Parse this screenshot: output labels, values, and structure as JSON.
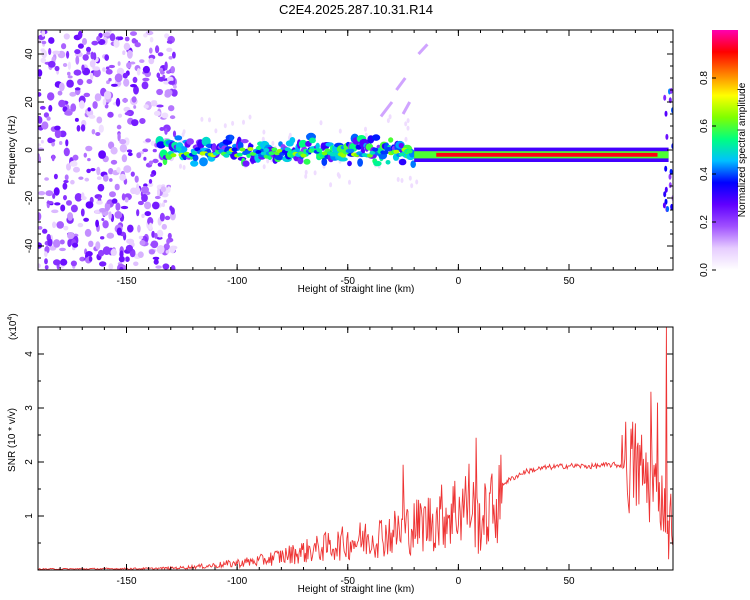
{
  "title": "C2E4.2025.287.10.31.R14",
  "chart_data": [
    {
      "type": "heatmap",
      "title": "C2E4.2025.287.10.31.R14",
      "xlabel": "Height of straight line (km)",
      "ylabel": "Frequency (Hz)",
      "xlim": [
        -190,
        97
      ],
      "ylim": [
        -50,
        50
      ],
      "x_ticks": [
        -150,
        -100,
        -50,
        0,
        50
      ],
      "y_ticks": [
        -40,
        -20,
        0,
        20,
        40
      ],
      "colorbar": {
        "label": "Normalized spectral amplitude",
        "range": [
          0,
          1
        ],
        "ticks": [
          0.0,
          0.2,
          0.4,
          0.6,
          0.8
        ],
        "tick_labels": [
          "0.0",
          "0.2",
          "0.4",
          "0.6",
          "0.8"
        ],
        "colors": [
          "#ffffff",
          "#e6ccff",
          "#a050ff",
          "#6000ff",
          "#0000ff",
          "#00c0ff",
          "#00ff80",
          "#80ff00",
          "#ffff00",
          "#ff8000",
          "#ff0000",
          "#ff00b0"
        ]
      },
      "segments": [
        {
          "x": [
            -190,
            -128
          ],
          "freq": 0,
          "freq_spread": 50,
          "amplitude": 0.2,
          "description_note": "noise"
        },
        {
          "x": [
            -135,
            -20
          ],
          "freq": 0,
          "freq_spread": 5,
          "amplitude": 0.45
        },
        {
          "x": [
            -20,
            95
          ],
          "freq": -2,
          "freq_spread": 1.5,
          "amplitude": 0.9
        }
      ]
    },
    {
      "type": "line",
      "xlabel": "Height of straight line (km)",
      "ylabel": "SNR (10 * v/v)",
      "ylabel_scale": "(x10",
      "ylabel_scale_exp": "4",
      "ylabel_scale_close": ")",
      "xlim": [
        -190,
        97
      ],
      "ylim": [
        0,
        4.5
      ],
      "x_ticks": [
        -150,
        -100,
        -50,
        0,
        50
      ],
      "y_ticks": [
        1,
        2,
        3,
        4
      ],
      "color": "#ee3333",
      "envelope": {
        "x": [
          -190,
          -140,
          -125,
          -110,
          -100,
          -90,
          -80,
          -70,
          -60,
          -50,
          -40,
          -30,
          -20,
          -10,
          0,
          5,
          10,
          20,
          30,
          40,
          50,
          60,
          70,
          80,
          85,
          90,
          95,
          97
        ],
        "y": [
          0.02,
          0.03,
          0.05,
          0.1,
          0.15,
          0.2,
          0.3,
          0.4,
          0.5,
          0.6,
          0.7,
          0.8,
          0.95,
          1.1,
          1.35,
          1.5,
          1.05,
          1.6,
          1.82,
          1.9,
          1.93,
          1.92,
          1.95,
          1.9,
          1.7,
          1.4,
          1.1,
          0.9
        ]
      },
      "spikes": [
        {
          "x": -25,
          "y": 1.95
        },
        {
          "x": 8,
          "y": 2.45
        },
        {
          "x": 9,
          "y": 0.3
        },
        {
          "x": 74,
          "y": 2.5
        },
        {
          "x": 87,
          "y": 3.3
        },
        {
          "x": 90,
          "y": 3.1
        },
        {
          "x": 94,
          "y": 4.5
        },
        {
          "x": 95,
          "y": 0.2
        }
      ]
    }
  ]
}
